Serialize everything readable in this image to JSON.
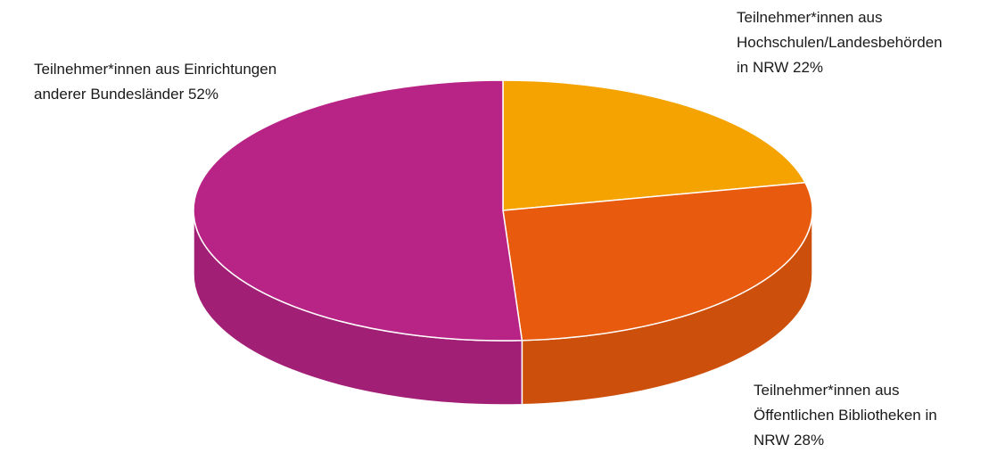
{
  "chart_data": {
    "type": "pie3d",
    "categories": [
      "Teilnehmer*innen aus Hochschulen/Landesbehörden in NRW",
      "Teilnehmer*innen aus Öffentlichen Bibliotheken in NRW",
      "Teilnehmer*innen aus Einrichtungen anderer Bundesländer"
    ],
    "values": [
      22,
      28,
      52
    ],
    "value_labels": [
      "22%",
      "28%",
      "52%"
    ],
    "colors": [
      "#f5a300",
      "#e85a0e",
      "#b82386"
    ],
    "side_colors": [
      "#d98f00",
      "#cc4f0b",
      "#a21f76"
    ]
  }
}
